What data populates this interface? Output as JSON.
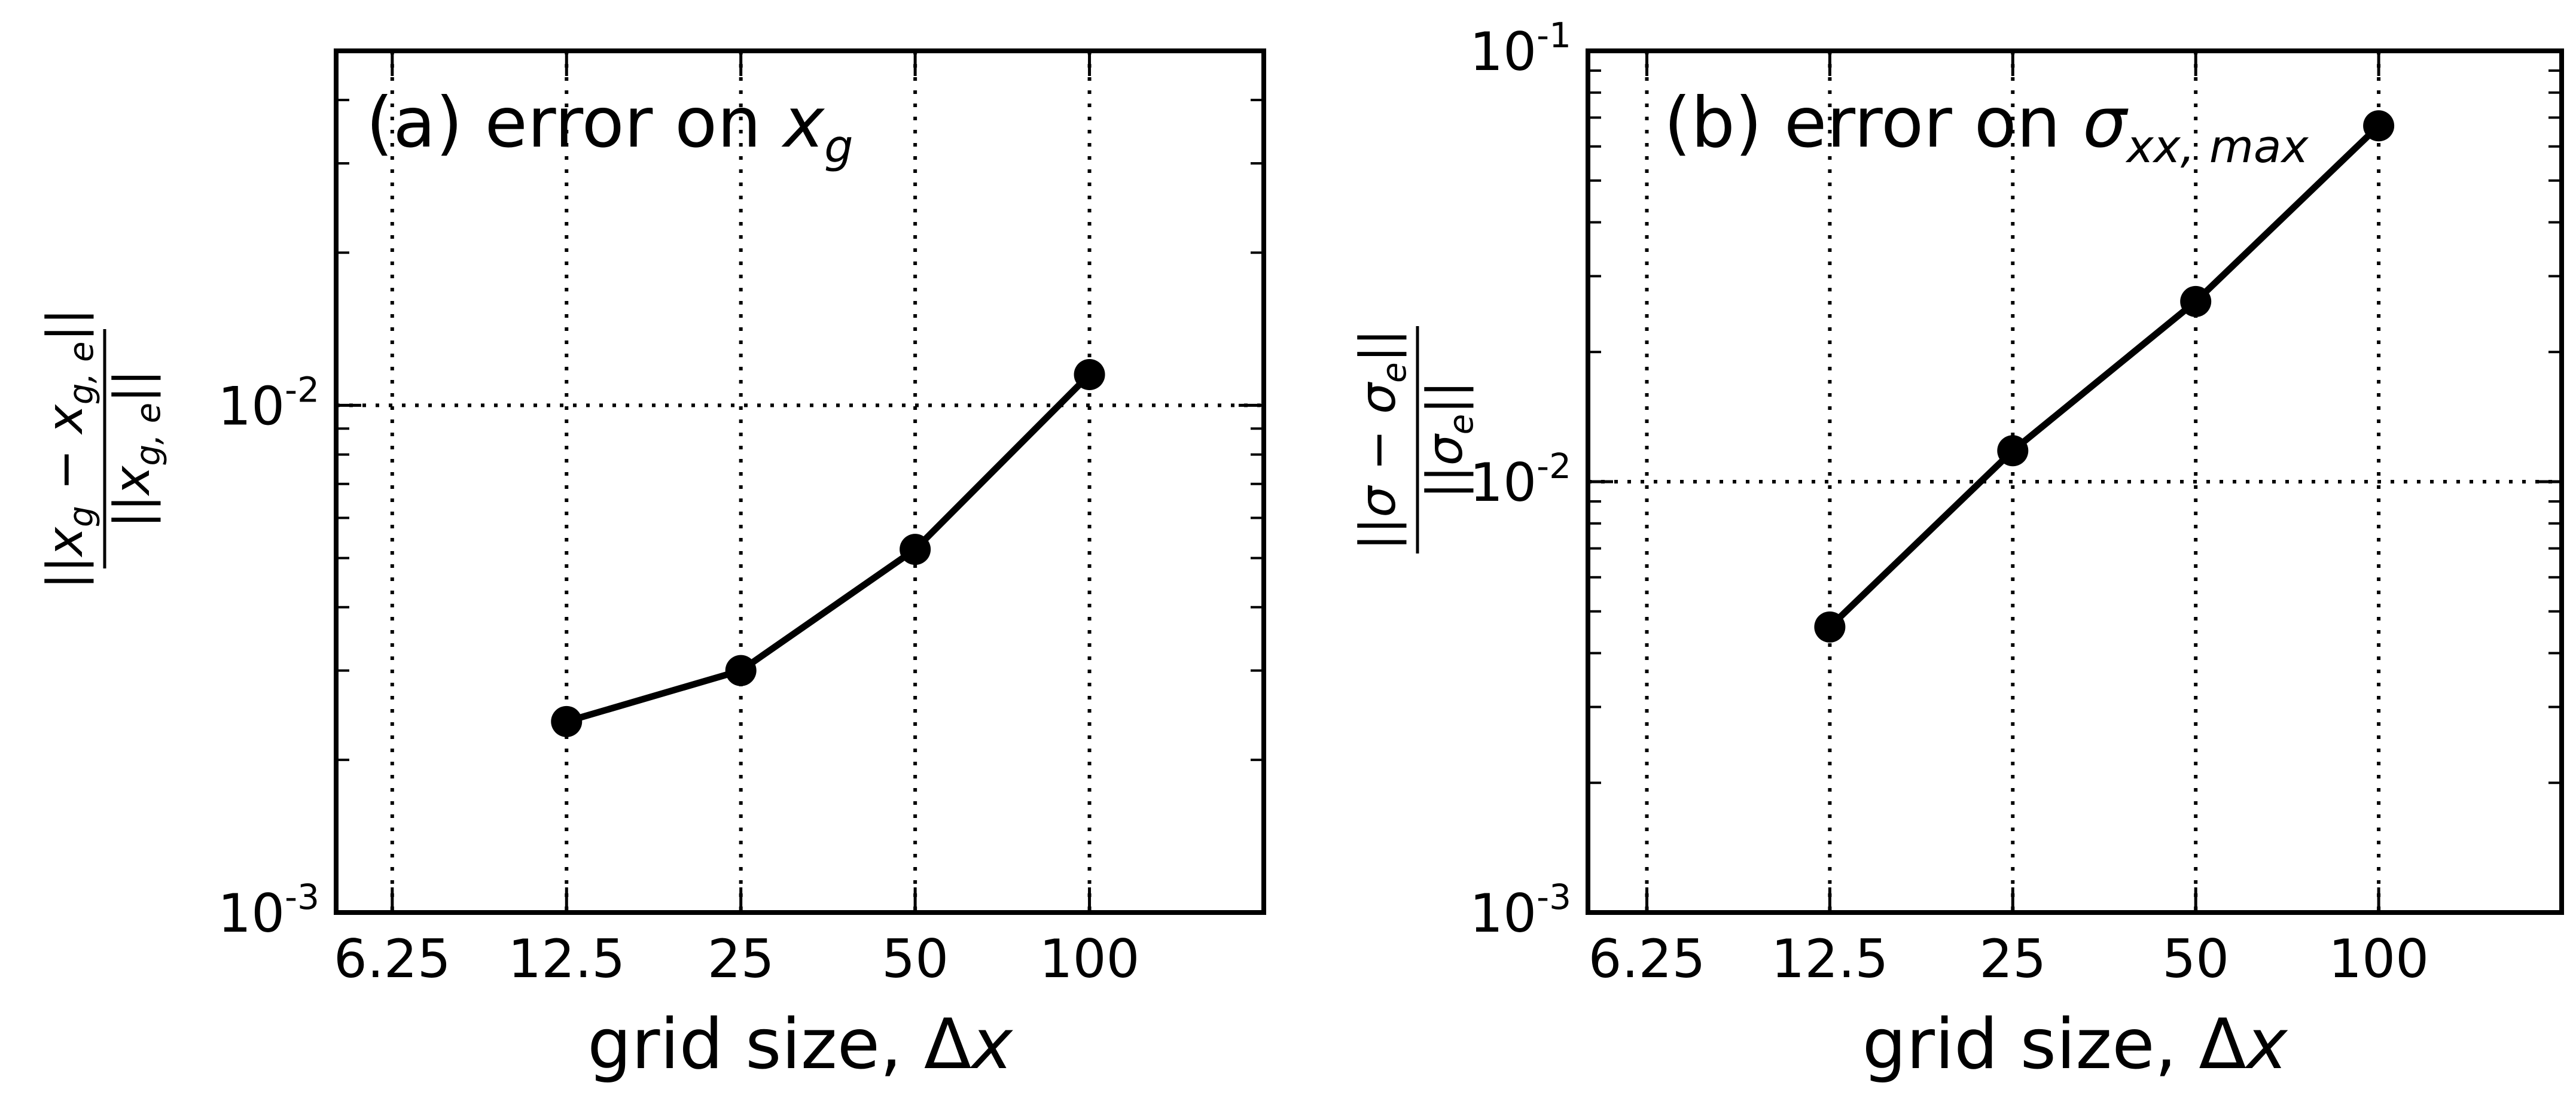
{
  "chart_data": [
    {
      "type": "line",
      "title": "(a) error on ",
      "title_math": "x",
      "title_math_sub": "g",
      "xlabel": "grid size, Δ",
      "xlabel_math": "x",
      "ylabel_numerator": "||x",
      "ylabel_numerator_sub1": "g",
      "ylabel_numerator_mid": " − x",
      "ylabel_numerator_sub2": "g, e",
      "ylabel_numerator_end": "||",
      "ylabel_denominator": "||x",
      "ylabel_denominator_sub": "g, e",
      "ylabel_denominator_end": "||",
      "xscale": "log2",
      "yscale": "log10",
      "xlim": [
        5,
        200
      ],
      "ylim": [
        0.001,
        0.05
      ],
      "x_ticks": [
        6.25,
        12.5,
        25,
        50,
        100
      ],
      "x_tick_labels": [
        "6.25",
        "12.5",
        "25",
        "50",
        "100"
      ],
      "y_ticks": [
        0.001,
        0.01
      ],
      "y_tick_labels": [
        {
          "base": "10",
          "exp": "-3"
        },
        {
          "base": "10",
          "exp": "-2"
        }
      ],
      "grid": "dotted, major ticks",
      "line_color": "#000000",
      "marker": "filled circle",
      "x": [
        12.5,
        25,
        50,
        100
      ],
      "y": [
        0.00238,
        0.003,
        0.0052,
        0.0115
      ]
    },
    {
      "type": "line",
      "title": "(b) error on ",
      "title_math": "σ",
      "title_math_sub": "xx, max",
      "xlabel": "grid size, Δ",
      "xlabel_math": "x",
      "ylabel_numerator": "||σ − σ",
      "ylabel_numerator_sub": "e",
      "ylabel_numerator_end": "||",
      "ylabel_denominator": "||σ",
      "ylabel_denominator_sub": "e",
      "ylabel_denominator_end": "||",
      "xscale": "log2",
      "yscale": "log10",
      "xlim": [
        5,
        200
      ],
      "ylim": [
        0.001,
        0.1
      ],
      "x_ticks": [
        6.25,
        12.5,
        25,
        50,
        100
      ],
      "x_tick_labels": [
        "6.25",
        "12.5",
        "25",
        "50",
        "100"
      ],
      "y_ticks": [
        0.001,
        0.01,
        0.1
      ],
      "y_tick_labels": [
        {
          "base": "10",
          "exp": "-3"
        },
        {
          "base": "10",
          "exp": "-2"
        },
        {
          "base": "10",
          "exp": "-1"
        }
      ],
      "grid": "dotted, major ticks",
      "line_color": "#000000",
      "marker": "filled circle",
      "x": [
        12.5,
        25,
        50,
        100
      ],
      "y": [
        0.0046,
        0.0118,
        0.0262,
        0.067
      ]
    }
  ]
}
